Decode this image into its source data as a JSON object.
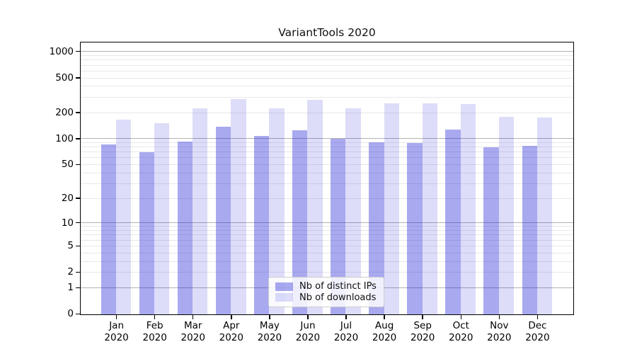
{
  "title": "VariantTools 2020",
  "chart_data": {
    "type": "bar",
    "title": "VariantTools 2020",
    "y_scale": "log1p",
    "grid": "major_and_minor",
    "legend_position": "lower center",
    "categories": [
      "Jan",
      "Feb",
      "Mar",
      "Apr",
      "May",
      "Jun",
      "Jul",
      "Aug",
      "Sep",
      "Oct",
      "Nov",
      "Dec"
    ],
    "year_label": "2020",
    "series": [
      {
        "name": "Nb of distinct IPs",
        "color": "#a8a8f0",
        "fill": "rgba(30,30,215,0.385)",
        "values": [
          87,
          70,
          93,
          139,
          109,
          126,
          100,
          92,
          90,
          128,
          80,
          83
        ]
      },
      {
        "name": "Nb of downloads",
        "color": "#ddddf9",
        "fill": "rgba(30,30,215,0.15)",
        "values": [
          168,
          153,
          226,
          289,
          224,
          283,
          226,
          256,
          259,
          252,
          181,
          178
        ]
      }
    ],
    "y_ticks": [
      0,
      1,
      2,
      5,
      10,
      20,
      50,
      100,
      200,
      500,
      1000
    ],
    "ylim": [
      0,
      1255
    ],
    "colors": {
      "major_grid": "#b2b2b2",
      "minor_grid": "#e8e8e8",
      "spine": "#000000",
      "legend_border": "#cccccc"
    }
  }
}
